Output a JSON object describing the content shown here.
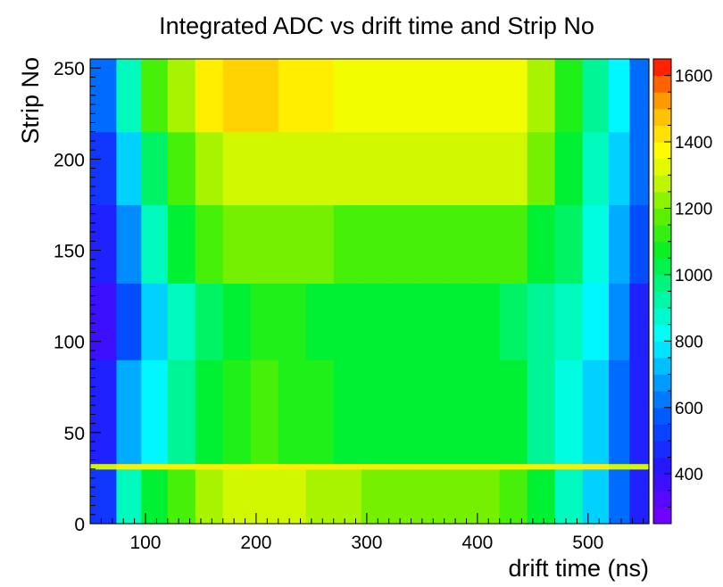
{
  "chart_data": {
    "type": "heatmap",
    "title": "Integrated ADC vs drift time and Strip No",
    "xlabel": "drift time (ns)",
    "ylabel": "Strip No",
    "xlim": [
      50,
      555
    ],
    "ylim": [
      0,
      255
    ],
    "x_ticks": [
      100,
      200,
      300,
      400,
      500
    ],
    "y_ticks": [
      0,
      50,
      100,
      150,
      200,
      250
    ],
    "z_ticks": [
      400,
      600,
      800,
      1000,
      1200,
      1400,
      1600
    ],
    "zlim": [
      250,
      1650
    ],
    "x_bins": [
      62.5,
      85,
      107.5,
      132.5,
      157.5,
      182.5,
      207.5,
      232.5,
      257.5,
      282.5,
      307.5,
      332.5,
      357.5,
      382.5,
      407.5,
      432.5,
      457.5,
      482.5,
      507.5,
      530,
      545
    ],
    "y_bands": [
      {
        "range": [
          0,
          30
        ],
        "values": [
          500,
          900,
          1050,
          1150,
          1250,
          1300,
          1300,
          1300,
          1250,
          1250,
          1200,
          1200,
          1200,
          1200,
          1200,
          1150,
          1050,
          900,
          750,
          600,
          450
        ]
      },
      {
        "range": [
          30,
          33
        ],
        "values": [
          1300,
          1400,
          1400,
          1400,
          1400,
          1400,
          1400,
          1400,
          1400,
          1400,
          1400,
          1400,
          1400,
          1400,
          1400,
          1400,
          1400,
          1400,
          1400,
          1300,
          1300
        ]
      },
      {
        "range": [
          33,
          90
        ],
        "values": [
          450,
          700,
          800,
          950,
          1050,
          1100,
          1150,
          1100,
          1100,
          1050,
          1050,
          1050,
          1050,
          1050,
          1050,
          1050,
          950,
          850,
          750,
          600,
          450
        ]
      },
      {
        "range": [
          90,
          132
        ],
        "values": [
          380,
          550,
          750,
          900,
          1000,
          1050,
          1100,
          1100,
          1050,
          1050,
          1050,
          1050,
          1050,
          1050,
          1050,
          1000,
          950,
          900,
          800,
          650,
          450
        ]
      },
      {
        "range": [
          132,
          175
        ],
        "values": [
          450,
          650,
          900,
          1050,
          1150,
          1200,
          1200,
          1200,
          1200,
          1150,
          1150,
          1150,
          1150,
          1150,
          1150,
          1150,
          1050,
          1000,
          850,
          700,
          550
        ]
      },
      {
        "range": [
          175,
          215
        ],
        "values": [
          500,
          750,
          1000,
          1150,
          1250,
          1300,
          1300,
          1300,
          1300,
          1300,
          1300,
          1300,
          1300,
          1300,
          1300,
          1300,
          1200,
          1050,
          900,
          750,
          600
        ]
      },
      {
        "range": [
          215,
          255
        ],
        "values": [
          600,
          900,
          1150,
          1250,
          1400,
          1450,
          1450,
          1400,
          1400,
          1350,
          1350,
          1350,
          1350,
          1350,
          1350,
          1350,
          1250,
          1100,
          950,
          800,
          600
        ]
      }
    ]
  }
}
